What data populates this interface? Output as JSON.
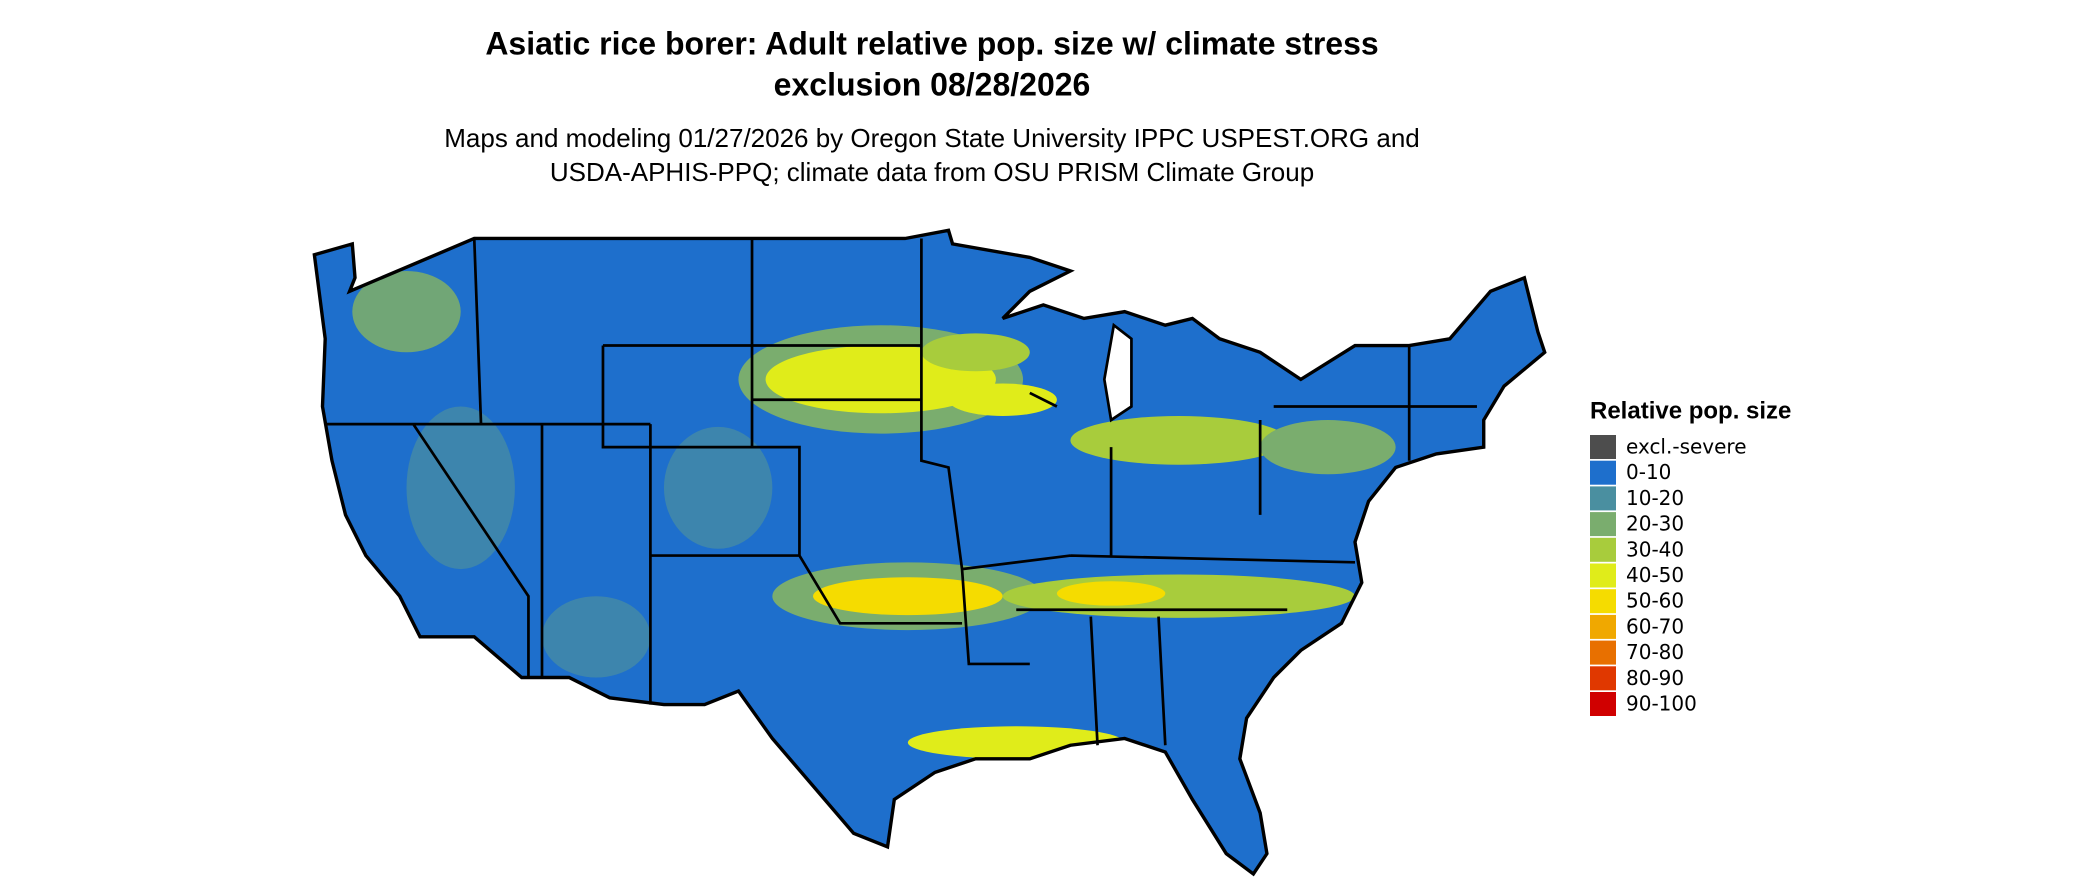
{
  "title": [
    "Asiatic rice borer: Adult relative pop. size w/ climate stress",
    "exclusion 08/28/2026"
  ],
  "subtitle": [
    "Maps and modeling 01/27/2026 by Oregon State University IPPC USPEST.ORG and",
    "USDA-APHIS-PPQ; climate data from OSU PRISM Climate Group"
  ],
  "legend": {
    "title": "Relative pop. size",
    "items": [
      {
        "label": "excl.-severe",
        "color": "#4d4d4d"
      },
      {
        "label": "0-10",
        "color": "#1e6fcc"
      },
      {
        "label": "10-20",
        "color": "#4a8fa0"
      },
      {
        "label": "20-30",
        "color": "#7aad6e"
      },
      {
        "label": "30-40",
        "color": "#a8cc3c"
      },
      {
        "label": "40-50",
        "color": "#e0ec1a"
      },
      {
        "label": "50-60",
        "color": "#f5dc00"
      },
      {
        "label": "60-70",
        "color": "#f0a800"
      },
      {
        "label": "70-80",
        "color": "#e87000"
      },
      {
        "label": "80-90",
        "color": "#e03800"
      },
      {
        "label": "90-100",
        "color": "#d00000"
      }
    ]
  }
}
